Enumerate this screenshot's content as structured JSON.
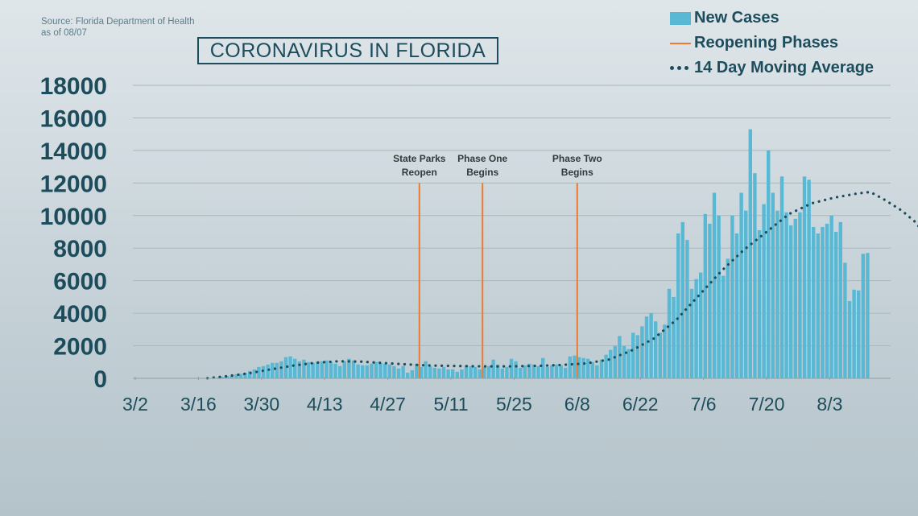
{
  "source": {
    "line1": "Source: Florida Department of Health",
    "line2": "as of 08/07"
  },
  "title": "CORONAVIRUS IN FLORIDA",
  "legend": {
    "bars": "New Cases",
    "lines": "Reopening Phases",
    "dots": "14 Day Moving Average"
  },
  "colors": {
    "bars": "#59b8d3",
    "phase_lines": "#ee7a2f",
    "moving_average": "#1d4d5c",
    "text": "#1d4d5c",
    "grid": "#a9b8bf"
  },
  "chart_data": {
    "type": "bar",
    "title": "CORONAVIRUS IN FLORIDA",
    "xlabel": "",
    "ylabel": "",
    "ylim": [
      0,
      18000
    ],
    "yticks": [
      "0",
      "2000",
      "4000",
      "6000",
      "8000",
      "10000",
      "12000",
      "14000",
      "16000",
      "18000"
    ],
    "xtick_labels": [
      "3/2",
      "3/16",
      "3/30",
      "4/13",
      "4/27",
      "5/11",
      "5/25",
      "6/8",
      "6/22",
      "7/6",
      "7/20",
      "8/3"
    ],
    "x_start": "3/2",
    "grid": true,
    "legend_position": "top-right",
    "series": [
      {
        "name": "New Cases",
        "type": "bar",
        "values": [
          0,
          0,
          0,
          0,
          0,
          0,
          0,
          0,
          0,
          0,
          0,
          0,
          0,
          0,
          0,
          0,
          10,
          30,
          50,
          90,
          130,
          180,
          250,
          280,
          350,
          450,
          550,
          700,
          750,
          850,
          950,
          950,
          1050,
          1300,
          1350,
          1200,
          1050,
          1150,
          1000,
          950,
          1000,
          1050,
          1100,
          1000,
          900,
          750,
          1050,
          1200,
          1100,
          850,
          800,
          800,
          900,
          1000,
          950,
          900,
          850,
          750,
          600,
          750,
          350,
          500,
          900,
          700,
          1050,
          750,
          650,
          600,
          700,
          550,
          550,
          400,
          550,
          800,
          750,
          700,
          550,
          700,
          750,
          1150,
          850,
          600,
          700,
          1200,
          1050,
          650,
          800,
          900,
          850,
          750,
          1250,
          700,
          800,
          850,
          800,
          650,
          1350,
          1400,
          1300,
          1250,
          1200,
          1000,
          800,
          1150,
          1450,
          1750,
          2000,
          2600,
          2000,
          1800,
          2800,
          2650,
          3200,
          3800,
          4000,
          3500,
          2800,
          3300,
          5500,
          5000,
          8900,
          9600,
          8500,
          5500,
          6100,
          6500,
          10100,
          9500,
          11400,
          10000,
          6300,
          7350,
          10000,
          8900,
          11400,
          10300,
          15300,
          12600,
          9100,
          10700,
          14000,
          11400,
          10300,
          12400,
          10200,
          9400,
          9800,
          10200,
          12400,
          12200,
          9300,
          8900,
          9300,
          9500,
          10000,
          9000,
          9600,
          7100,
          4750,
          5450,
          5400,
          7650,
          7700
        ]
      },
      {
        "name": "14 Day Moving Average",
        "type": "line",
        "points": [
          [
            16,
            10
          ],
          [
            20,
            120
          ],
          [
            25,
            300
          ],
          [
            30,
            550
          ],
          [
            35,
            780
          ],
          [
            40,
            960
          ],
          [
            45,
            1050
          ],
          [
            50,
            1030
          ],
          [
            55,
            940
          ],
          [
            60,
            860
          ],
          [
            65,
            790
          ],
          [
            70,
            760
          ],
          [
            75,
            740
          ],
          [
            80,
            730
          ],
          [
            85,
            740
          ],
          [
            90,
            770
          ],
          [
            95,
            830
          ],
          [
            100,
            920
          ],
          [
            105,
            1150
          ],
          [
            110,
            1700
          ],
          [
            115,
            2450
          ],
          [
            120,
            3600
          ],
          [
            125,
            5100
          ],
          [
            130,
            6600
          ],
          [
            135,
            7900
          ],
          [
            140,
            9000
          ],
          [
            145,
            10100
          ],
          [
            150,
            10750
          ],
          [
            155,
            11100
          ],
          [
            160,
            11350
          ],
          [
            163,
            11450
          ],
          [
            166,
            11000
          ],
          [
            170,
            10300
          ],
          [
            173,
            9600
          ],
          [
            176,
            8500
          ]
        ]
      }
    ],
    "annotations": [
      {
        "day": 63,
        "label": [
          "State Parks",
          "Reopen"
        ],
        "top": 12000
      },
      {
        "day": 77,
        "label": [
          "Phase One",
          "Begins"
        ],
        "top": 12000
      },
      {
        "day": 98,
        "label": [
          "Phase Two",
          "Begins"
        ],
        "top": 12000
      }
    ]
  }
}
